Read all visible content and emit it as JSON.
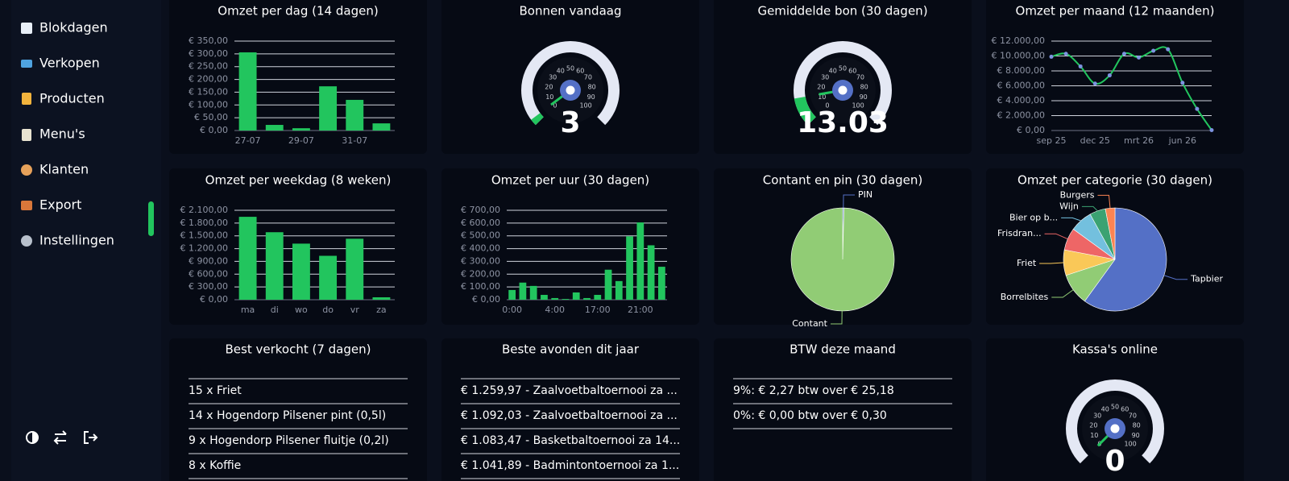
{
  "sidebar": {
    "items": [
      "Blokdagen",
      "Verkopen",
      "Producten",
      "Menu's",
      "Klanten",
      "Export",
      "Instellingen"
    ]
  },
  "widgets": [
    {
      "title": "Omzet per dag (14 dagen)",
      "chart": {
        "type": "bar",
        "color": "#22c55e",
        "grid": true,
        "categories": [
          "27-07",
          null,
          "29-07",
          null,
          "31-07",
          null
        ],
        "values": [
          306,
          22,
          9,
          173,
          120,
          28
        ],
        "ylim": [
          0,
          350
        ],
        "yticks": [
          {
            "value": 0,
            "label": "€ 0,00"
          },
          {
            "value": 50,
            "label": "€ 50,00"
          },
          {
            "value": 100,
            "label": "€ 100,00"
          },
          {
            "value": 150,
            "label": "€ 150,00"
          },
          {
            "value": 200,
            "label": "€ 200,00"
          },
          {
            "value": 250,
            "label": "€ 250,00"
          },
          {
            "value": 300,
            "label": "€ 300,00"
          },
          {
            "value": 350,
            "label": "€ 350,00"
          }
        ]
      }
    },
    {
      "title": "Bonnen vandaag",
      "chart": {
        "type": "gauge",
        "value": 3,
        "range": [
          0,
          100
        ],
        "ticks": [
          0,
          10,
          20,
          30,
          40,
          50,
          60,
          70,
          80,
          90,
          100
        ],
        "color": "#22c55e"
      }
    },
    {
      "title": "Gemiddelde bon (30 dagen)",
      "chart": {
        "type": "gauge",
        "value": 13.03,
        "range": [
          0,
          100
        ],
        "ticks": [
          0,
          10,
          20,
          30,
          40,
          50,
          60,
          70,
          80,
          90,
          100
        ],
        "color": "#22c55e"
      }
    },
    {
      "title": "Omzet per maand (12 maanden)",
      "chart": {
        "type": "line",
        "color": "#22c55e",
        "marker_color": "#7d93e0",
        "grid": true,
        "categories": [
          "sep 25",
          null,
          null,
          "dec 25",
          null,
          null,
          "mrt 26",
          null,
          null,
          "jun 26",
          null,
          null
        ],
        "values": [
          9900,
          10300,
          8600,
          6300,
          7400,
          10300,
          9800,
          10700,
          10900,
          6400,
          2900,
          50
        ],
        "ylim": [
          0,
          12000
        ],
        "yticks": [
          {
            "value": 0,
            "label": "€ 0,00"
          },
          {
            "value": 2000,
            "label": "€ 2.000,00"
          },
          {
            "value": 4000,
            "label": "€ 4.000,00"
          },
          {
            "value": 6000,
            "label": "€ 6.000,00"
          },
          {
            "value": 8000,
            "label": "€ 8.000,00"
          },
          {
            "value": 10000,
            "label": "€ 10.000,00"
          },
          {
            "value": 12000,
            "label": "€ 12.000,00"
          }
        ]
      }
    },
    {
      "title": "Omzet per weekdag (8 weken)",
      "chart": {
        "type": "bar",
        "color": "#22c55e",
        "grid": true,
        "categories": [
          "ma",
          "di",
          "wo",
          "do",
          "vr",
          "za"
        ],
        "values": [
          1947,
          1585,
          1317,
          1031,
          1432,
          57
        ],
        "ylim": [
          0,
          2100
        ],
        "yticks": [
          {
            "value": 0,
            "label": "€ 0,00"
          },
          {
            "value": 300,
            "label": "€ 300,00"
          },
          {
            "value": 600,
            "label": "€ 600,00"
          },
          {
            "value": 900,
            "label": "€ 900,00"
          },
          {
            "value": 1200,
            "label": "€ 1.200,00"
          },
          {
            "value": 1500,
            "label": "€ 1.500,00"
          },
          {
            "value": 1800,
            "label": "€ 1.800,00"
          },
          {
            "value": 2100,
            "label": "€ 2.100,00"
          }
        ]
      }
    },
    {
      "title": "Omzet per uur (30 dagen)",
      "chart": {
        "type": "bar",
        "color": "#22c55e",
        "grid": true,
        "categories": [
          "0:00",
          null,
          null,
          null,
          "4:00",
          null,
          null,
          null,
          "17:00",
          null,
          null,
          null,
          "21:00",
          null,
          null
        ],
        "values": [
          76,
          134,
          108,
          38,
          13,
          6,
          57,
          13,
          38,
          235,
          146,
          496,
          605,
          426,
          258
        ],
        "ylim": [
          0,
          700
        ],
        "yticks": [
          {
            "value": 0,
            "label": "€ 0,00"
          },
          {
            "value": 100,
            "label": "€ 100,00"
          },
          {
            "value": 200,
            "label": "€ 200,00"
          },
          {
            "value": 300,
            "label": "€ 300,00"
          },
          {
            "value": 400,
            "label": "€ 400,00"
          },
          {
            "value": 500,
            "label": "€ 500,00"
          },
          {
            "value": 600,
            "label": "€ 600,00"
          },
          {
            "value": 700,
            "label": "€ 700,00"
          }
        ]
      }
    },
    {
      "title": "Contant en pin (30 dagen)",
      "chart": {
        "type": "pie",
        "categories": [
          "PIN",
          "Contant"
        ],
        "values": [
          0.4,
          99.6
        ],
        "colors": [
          "#5470c6",
          "#91cc75"
        ]
      }
    },
    {
      "title": "Omzet per categorie (30 dagen)",
      "chart": {
        "type": "pie",
        "categories": [
          "Tapbier",
          "Borrelbites",
          "Friet",
          "Frisdran...",
          "Bier op b...",
          "Wijn",
          "Burgers"
        ],
        "values": [
          60,
          10,
          8,
          7,
          7,
          5,
          3
        ],
        "colors": [
          "#5470c6",
          "#91cc75",
          "#fac858",
          "#ee6666",
          "#73c0de",
          "#3ba272",
          "#fc8452"
        ]
      }
    },
    {
      "title": "Best verkocht (7 dagen)",
      "rows": [
        "15 x Friet",
        "14 x Hogendorp Pilsener pint (0,5l)",
        "9 x Hogendorp Pilsener fluitje (0,2l)",
        "8 x Koffie"
      ]
    },
    {
      "title": "Beste avonden dit jaar",
      "rows": [
        "€ 1.259,97 - Zaalvoetbaltoernooi za ...",
        "€ 1.092,03 - Zaalvoetbaltoernooi za ...",
        "€ 1.083,47 - Basketbaltoernooi za 14...",
        "€ 1.041,89 - Badmintontoernooi za 1..."
      ]
    },
    {
      "title": "BTW deze maand",
      "rows": [
        "9%: € 2,27 btw over € 25,18",
        "0%: € 0,00 btw over € 0,30"
      ]
    },
    {
      "title": "Kassa's online",
      "chart": {
        "type": "gauge",
        "value": 0,
        "range": [
          0,
          100
        ],
        "ticks": [
          0,
          10,
          20,
          30,
          40,
          50,
          60,
          70,
          80,
          90,
          100
        ],
        "color": "#22c55e"
      }
    }
  ]
}
